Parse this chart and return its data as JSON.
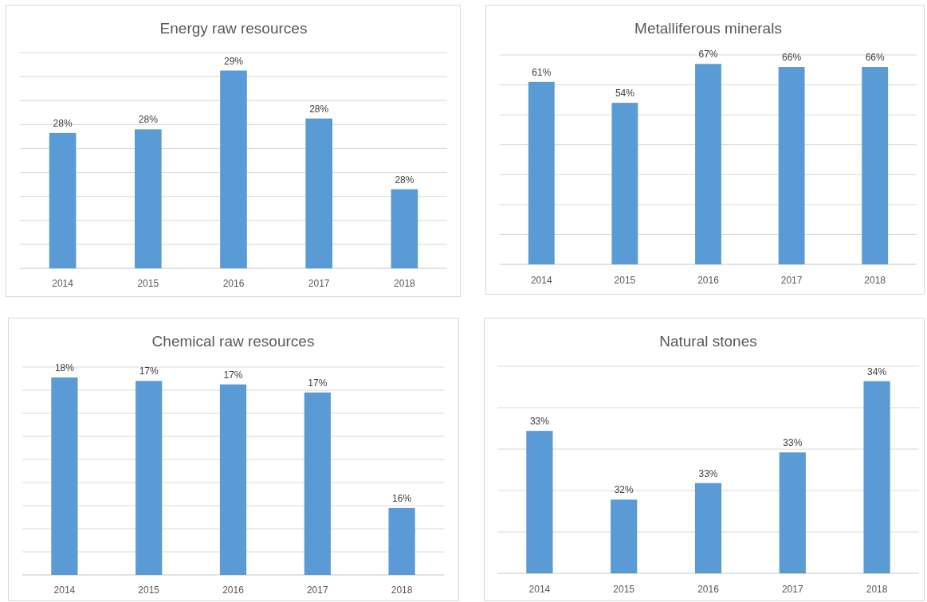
{
  "chart_data": [
    {
      "type": "bar",
      "title": "Energy raw resources",
      "categories": [
        "2014",
        "2015",
        "2016",
        "2017",
        "2018"
      ],
      "values": [
        28.13,
        28.16,
        28.65,
        28.25,
        27.66
      ],
      "color": "#5b9bd5",
      "value_labels": [
        "28%",
        "28%",
        "29%",
        "28%",
        "28%"
      ],
      "ylim": [
        27,
        28.8
      ],
      "yticks": [
        {
          "value": 27,
          "label": null
        },
        {
          "value": 27.2,
          "label": null
        },
        {
          "value": 27.4,
          "label": null
        },
        {
          "value": 27.6,
          "label": null
        },
        {
          "value": 27.8,
          "label": null
        },
        {
          "value": 28,
          "label": null
        },
        {
          "value": 28.2,
          "label": null
        },
        {
          "value": 28.4,
          "label": null
        },
        {
          "value": 28.6,
          "label": null
        },
        {
          "value": 28.8,
          "label": null
        }
      ],
      "grid": "y",
      "tick_labels": "x"
    },
    {
      "type": "bar",
      "title": "Metalliferous minerals",
      "categories": [
        "2014",
        "2015",
        "2016",
        "2017",
        "2018"
      ],
      "values": [
        61,
        54,
        67,
        66,
        66
      ],
      "color": "#5b9bd5",
      "value_labels": [
        "61%",
        "54%",
        "67%",
        "66%",
        "66%"
      ],
      "ylim": [
        0,
        70
      ],
      "yticks": [
        {
          "value": 0,
          "label": null
        },
        {
          "value": 10,
          "label": null
        },
        {
          "value": 20,
          "label": null
        },
        {
          "value": 30,
          "label": null
        },
        {
          "value": 40,
          "label": null
        },
        {
          "value": 50,
          "label": null
        },
        {
          "value": 60,
          "label": null
        },
        {
          "value": 70,
          "label": null
        }
      ],
      "grid": "y",
      "tick_labels": "x"
    },
    {
      "type": "bar",
      "title": "Chemical raw resources",
      "categories": [
        "2014",
        "2015",
        "2016",
        "2017",
        "2018"
      ],
      "values": [
        17.51,
        17.48,
        17.45,
        17.38,
        16.38
      ],
      "color": "#5b9bd5",
      "value_labels": [
        "18%",
        "17%",
        "17%",
        "17%",
        "16%"
      ],
      "ylim": [
        15.8,
        17.6
      ],
      "yticks": [
        {
          "value": 15.8,
          "label": null
        },
        {
          "value": 16,
          "label": null
        },
        {
          "value": 16.2,
          "label": null
        },
        {
          "value": 16.4,
          "label": null
        },
        {
          "value": 16.6,
          "label": null
        },
        {
          "value": 16.8,
          "label": null
        },
        {
          "value": 17,
          "label": null
        },
        {
          "value": 17.2,
          "label": null
        },
        {
          "value": 17.4,
          "label": null
        },
        {
          "value": 17.6,
          "label": null
        }
      ],
      "grid": "y",
      "tick_labels": "x"
    },
    {
      "type": "bar",
      "title": "Natural stones",
      "categories": [
        "2014",
        "2015",
        "2016",
        "2017",
        "2018"
      ],
      "values": [
        33.22,
        32.39,
        32.59,
        32.96,
        33.82
      ],
      "color": "#5b9bd5",
      "value_labels": [
        "33%",
        "32%",
        "33%",
        "33%",
        "34%"
      ],
      "ylim": [
        31.5,
        34
      ],
      "yticks": [
        {
          "value": 31.5,
          "label": null
        },
        {
          "value": 32,
          "label": null
        },
        {
          "value": 32.5,
          "label": null
        },
        {
          "value": 33,
          "label": null
        },
        {
          "value": 33.5,
          "label": null
        },
        {
          "value": 34,
          "label": null
        }
      ],
      "grid": "y",
      "tick_labels": "x"
    }
  ]
}
